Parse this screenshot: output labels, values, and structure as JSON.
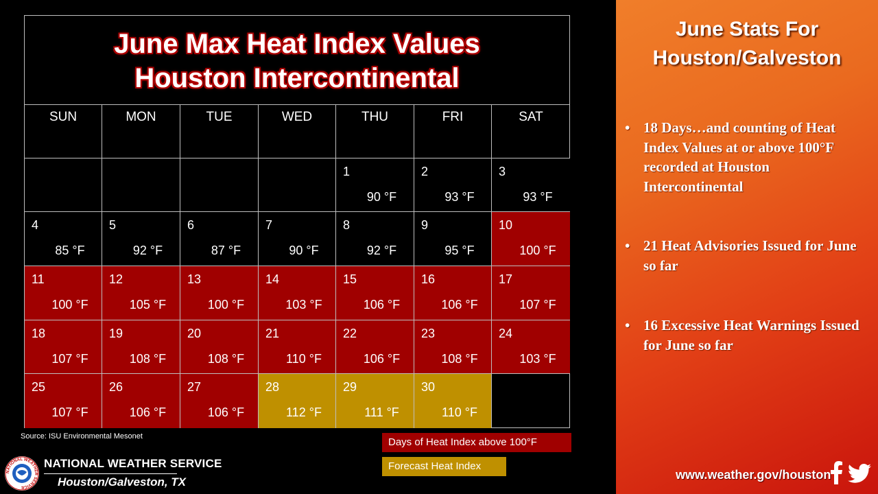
{
  "calendar": {
    "title_line1": "June Max Heat Index Values",
    "title_line2": "Houston Intercontinental",
    "weekdays": [
      "SUN",
      "MON",
      "TUE",
      "WED",
      "THU",
      "FRI",
      "SAT"
    ],
    "weeks": [
      [
        null,
        null,
        null,
        null,
        {
          "day": "1",
          "temp": "90 °F",
          "status": "normal"
        },
        {
          "day": "2",
          "temp": "93 °F",
          "status": "normal"
        },
        {
          "day": "3",
          "temp": "93 °F",
          "status": "normal"
        }
      ],
      [
        {
          "day": "4",
          "temp": "85 °F",
          "status": "normal"
        },
        {
          "day": "5",
          "temp": "92 °F",
          "status": "normal"
        },
        {
          "day": "6",
          "temp": "87 °F",
          "status": "normal"
        },
        {
          "day": "7",
          "temp": "90 °F",
          "status": "normal"
        },
        {
          "day": "8",
          "temp": "92 °F",
          "status": "normal"
        },
        {
          "day": "9",
          "temp": "95 °F",
          "status": "normal"
        },
        {
          "day": "10",
          "temp": "100 °F",
          "status": "heat"
        }
      ],
      [
        {
          "day": "11",
          "temp": "100 °F",
          "status": "heat"
        },
        {
          "day": "12",
          "temp": "105 °F",
          "status": "heat"
        },
        {
          "day": "13",
          "temp": "100 °F",
          "status": "heat"
        },
        {
          "day": "14",
          "temp": "103 °F",
          "status": "heat"
        },
        {
          "day": "15",
          "temp": "106 °F",
          "status": "heat"
        },
        {
          "day": "16",
          "temp": "106 °F",
          "status": "heat"
        },
        {
          "day": "17",
          "temp": "107 °F",
          "status": "heat"
        }
      ],
      [
        {
          "day": "18",
          "temp": "107 °F",
          "status": "heat"
        },
        {
          "day": "19",
          "temp": "108 °F",
          "status": "heat"
        },
        {
          "day": "20",
          "temp": "108 °F",
          "status": "heat"
        },
        {
          "day": "21",
          "temp": "110 °F",
          "status": "heat"
        },
        {
          "day": "22",
          "temp": "106 °F",
          "status": "heat"
        },
        {
          "day": "23",
          "temp": "108 °F",
          "status": "heat"
        },
        {
          "day": "24",
          "temp": "103 °F",
          "status": "heat"
        }
      ],
      [
        {
          "day": "25",
          "temp": "107 °F",
          "status": "heat"
        },
        {
          "day": "26",
          "temp": "106 °F",
          "status": "heat"
        },
        {
          "day": "27",
          "temp": "106 °F",
          "status": "heat"
        },
        {
          "day": "28",
          "temp": "112 °F",
          "status": "forecast"
        },
        {
          "day": "29",
          "temp": "111 °F",
          "status": "forecast"
        },
        {
          "day": "30",
          "temp": "110 °F",
          "status": "forecast"
        },
        null
      ]
    ]
  },
  "source": "Source: ISU Environmental Mesonet",
  "legend": {
    "heat_label": "Days of Heat Index above 100°F",
    "forecast_label": "Forecast Heat Index"
  },
  "branding": {
    "agency": "NATIONAL WEATHER SERVICE",
    "office": "Houston/Galveston, TX",
    "logo_text": "NATIONAL WEATHER SERVICE"
  },
  "stats": {
    "title_line1": "June Stats For",
    "title_line2": "Houston/Galveston",
    "bullets": [
      "18 Days…and counting of Heat Index Values at or above 100°F recorded at Houston Intercontinental",
      "21 Heat Advisories Issued for June so far",
      "16 Excessive Heat Warnings Issued for June so far"
    ]
  },
  "website": "www.weather.gov/houston",
  "colors": {
    "heat": "#a00000",
    "forecast": "#bf9000",
    "normal": "#000000"
  }
}
